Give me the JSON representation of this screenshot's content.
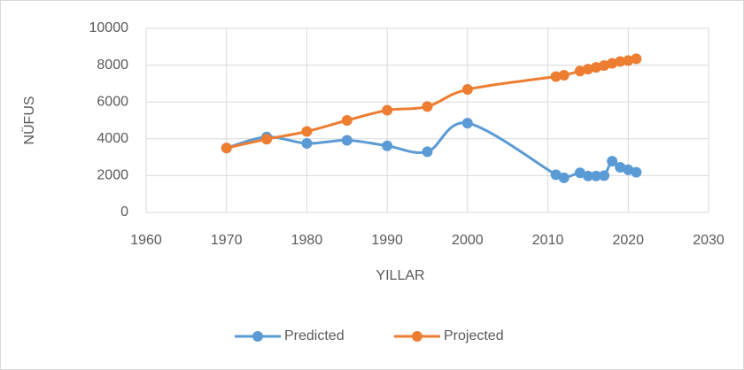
{
  "chart_data": {
    "type": "line",
    "x_label": "YILLAR",
    "y_label": "NÜFUS",
    "x": [
      1970,
      1975,
      1980,
      1985,
      1990,
      1995,
      2000,
      2011,
      2012,
      2014,
      2015,
      2016,
      2017,
      2018,
      2019,
      2020,
      2021
    ],
    "series": [
      {
        "name": "Predicted",
        "color": "#5b9bd5",
        "values": [
          3500,
          4100,
          3750,
          3920,
          3620,
          3300,
          4850,
          2050,
          1880,
          2150,
          1980,
          1980,
          2000,
          2780,
          2450,
          2320,
          2180
        ]
      },
      {
        "name": "Projected",
        "color": "#ed7d31",
        "values": [
          3500,
          3980,
          4400,
          5000,
          5550,
          5750,
          6680,
          7380,
          7450,
          7680,
          7780,
          7880,
          7980,
          8100,
          8200,
          8250,
          8350
        ]
      }
    ],
    "xlim": [
      1960,
      2030
    ],
    "xticks": [
      1960,
      1970,
      1980,
      1990,
      2000,
      2010,
      2020,
      2030
    ],
    "ylim": [
      0,
      10000
    ],
    "yticks": [
      0,
      2000,
      4000,
      6000,
      8000,
      10000
    ],
    "grid": true,
    "legend": "bottom"
  }
}
